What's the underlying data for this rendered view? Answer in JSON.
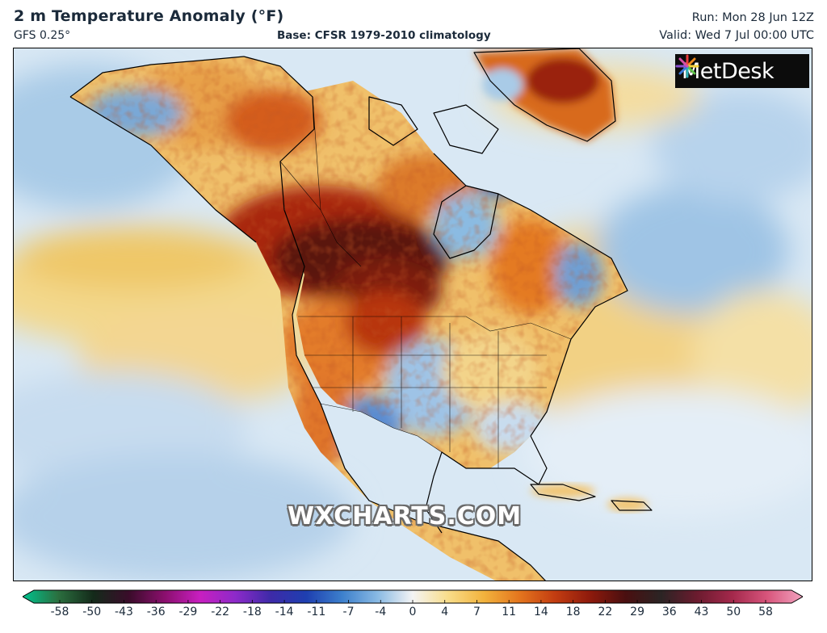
{
  "header": {
    "title": "2 m Temperature Anomaly (°F)",
    "model": "GFS 0.25°",
    "base": "Base: CFSR 1979-2010 climatology",
    "run": "Run: Mon 28 Jun 12Z",
    "valid": "Valid: Wed 7 Jul 00:00 UTC"
  },
  "logo": {
    "text": "MetDesk",
    "icon": "starburst-logo-icon"
  },
  "watermark": "WXCHARTS.COM",
  "colors": {
    "map_background": "#dbe9f3",
    "land_hot": "#8a1a0a",
    "land_warm": "#e67a1c",
    "land_mild": "#f3cf7a",
    "land_cool": "#7fb0d8",
    "land_cold": "#2f6fba",
    "coast": "#000000"
  },
  "colorbar": {
    "labels": [
      "-58",
      "-50",
      "-43",
      "-36",
      "-29",
      "-22",
      "-18",
      "-14",
      "-11",
      "-7",
      "-4",
      "0",
      "4",
      "7",
      "11",
      "14",
      "18",
      "22",
      "29",
      "36",
      "43",
      "50",
      "58"
    ],
    "stops": [
      "#00c38f",
      "#2b6f3f",
      "#142a1a",
      "#3a0c2a",
      "#8a0f6d",
      "#c81fc0",
      "#8d2ac9",
      "#3d2aa8",
      "#1e3fb0",
      "#3c7fcc",
      "#88b9e3",
      "#f4f4f4",
      "#f8dd8a",
      "#f2b33d",
      "#e4761e",
      "#c33d11",
      "#8e1a0c",
      "#4a0f10",
      "#2b2424",
      "#6a1b2e",
      "#a3284b",
      "#d8557c",
      "#f2a3bf"
    ]
  },
  "chart_data": {
    "type": "heatmap",
    "title": "2 m Temperature Anomaly (°F)",
    "variable": "2 m temperature anomaly",
    "unit": "°F",
    "model": "GFS 0.25°",
    "base": "CFSR 1979-2010 climatology",
    "run": "Mon 28 Jun 12Z",
    "valid": "Wed 7 Jul 00:00 UTC",
    "scale_ticks": [
      -58,
      -50,
      -43,
      -36,
      -29,
      -22,
      -18,
      -14,
      -11,
      -7,
      -4,
      0,
      4,
      7,
      11,
      14,
      18,
      22,
      29,
      36,
      43,
      50,
      58
    ]
  }
}
